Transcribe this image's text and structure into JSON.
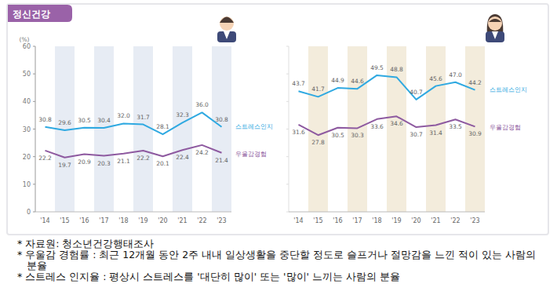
{
  "header": {
    "title": "정신건강"
  },
  "chart_data": [
    {
      "type": "line",
      "y_label": "(%)",
      "categories": [
        "'14",
        "'15",
        "'16",
        "'17",
        "'18",
        "'19",
        "'20",
        "'21",
        "'22",
        "'23"
      ],
      "series": [
        {
          "name": "스트레스인지",
          "color": "#2fa9e1",
          "values": [
            30.8,
            29.6,
            30.5,
            30.4,
            32.0,
            31.7,
            28.1,
            32.3,
            36.0,
            30.8
          ],
          "value_labels": [
            "30.8",
            "29.6",
            "30.5",
            "30.4",
            "32.0",
            "31.7",
            "28.1",
            "32.3",
            "36.0",
            "30.8"
          ]
        },
        {
          "name": "우울감경험",
          "color": "#8e5aa0",
          "values": [
            22.2,
            19.7,
            20.9,
            20.3,
            21.1,
            22.2,
            20.1,
            22.4,
            24.2,
            21.4
          ],
          "value_labels": [
            "22.2",
            "19.7",
            "20.9",
            "20.3",
            "21.1",
            "22.2",
            "20.1",
            "22.4",
            "24.2",
            "21.4"
          ]
        }
      ],
      "ylim": [
        0,
        60
      ],
      "yticks": [
        0,
        10,
        20,
        30,
        40,
        50,
        60
      ],
      "grid": false,
      "data_labels": true,
      "legend": "right",
      "color": "#e7ecf4"
    },
    {
      "type": "line",
      "categories": [
        "'14",
        "'15",
        "'16",
        "'17",
        "'18",
        "'19",
        "'20",
        "'21",
        "'22",
        "'23"
      ],
      "series": [
        {
          "name": "스트레스인지",
          "color": "#2fa9e1",
          "values": [
            43.7,
            41.7,
            44.9,
            44.6,
            49.5,
            48.8,
            40.7,
            45.6,
            47.0,
            44.2
          ],
          "value_labels": [
            "43.7",
            "41.7",
            "44.9",
            "44.6",
            "49.5",
            "48.8",
            "40.7",
            "45.6",
            "47.0",
            "44.2"
          ]
        },
        {
          "name": "우울감경험",
          "color": "#8e5aa0",
          "values": [
            31.6,
            27.8,
            30.5,
            30.3,
            33.6,
            34.6,
            30.7,
            31.4,
            33.5,
            30.9
          ],
          "value_labels": [
            "31.6",
            "27.8",
            "30.5",
            "30.3",
            "33.6",
            "34.6",
            "30.7",
            "31.4",
            "33.5",
            "30.9"
          ]
        }
      ],
      "ylim": [
        0,
        60
      ],
      "yticks": [
        0,
        10,
        20,
        30,
        40,
        50,
        60
      ],
      "grid": false,
      "data_labels": true,
      "legend": "right",
      "tick_labels": "x",
      "color": "#f3ecdc"
    }
  ],
  "notes": [
    "* 자료원: 청소년건강행태조사",
    "* 우울감 경험률 : 최근 12개월 동안 2주 내내 일상생활을 중단할 정도로 슬프거나 절망감을 느낀 적이 있는 사람의 분율",
    "* 스트레스 인지율 : 평상시 스트레스를 '대단히 많이' 또는 '많이' 느끼는 사람의 분율"
  ]
}
